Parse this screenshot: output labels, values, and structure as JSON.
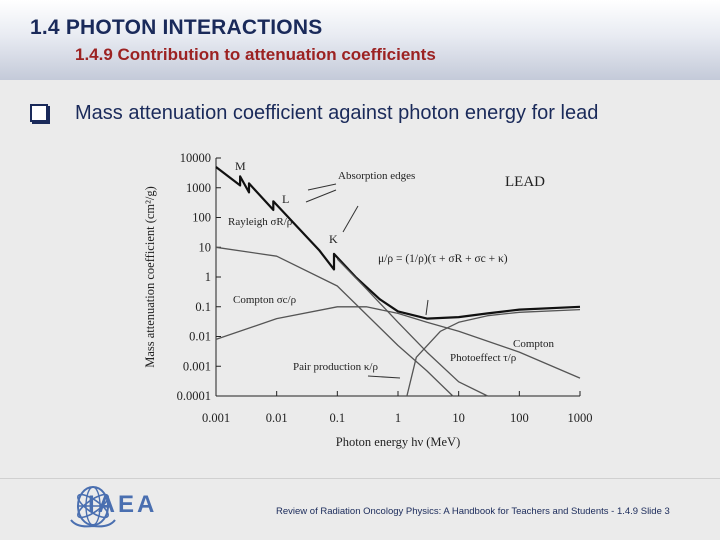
{
  "header": {
    "title": "1.4  PHOTON INTERACTIONS",
    "subtitle": "1.4.9 Contribution to attenuation coefficients"
  },
  "bullet": {
    "text": "Mass attenuation coefficient against photon energy for lead"
  },
  "figure": {
    "chart_data": {
      "type": "line",
      "title": "LEAD",
      "xlabel": "Photon energy hν (MeV)",
      "ylabel": "Mass attenuation coefficient (cm²/g)",
      "x_scale": "log",
      "y_scale": "log",
      "xlim": [
        0.001,
        1000
      ],
      "ylim": [
        0.0001,
        10000
      ],
      "x_ticks": [
        "0.001",
        "0.01",
        "0.1",
        "1",
        "10",
        "100",
        "1000"
      ],
      "y_ticks": [
        "10000",
        "1000",
        "100",
        "10",
        "1",
        "0.1",
        "0.01",
        "0.001",
        "0.0001"
      ],
      "series": [
        {
          "name": "total",
          "x": [
            0.001,
            0.0025,
            0.0025,
            0.0035,
            0.0035,
            0.0088,
            0.0088,
            0.05,
            0.088,
            0.088,
            0.2,
            0.5,
            1,
            3,
            10,
            30,
            100,
            1000
          ],
          "y": [
            5000,
            1200,
            2400,
            700,
            1400,
            180,
            350,
            8,
            1.8,
            6,
            1,
            0.18,
            0.07,
            0.04,
            0.045,
            0.06,
            0.08,
            0.1
          ]
        },
        {
          "name": "photoeffect",
          "x": [
            0.1,
            0.3,
            1,
            3,
            10,
            30
          ],
          "y": [
            4,
            0.4,
            0.03,
            0.003,
            0.0003,
            0.0001
          ]
        },
        {
          "name": "rayleigh",
          "x": [
            0.001,
            0.01,
            0.1,
            1,
            3,
            8
          ],
          "y": [
            10,
            5,
            0.5,
            0.005,
            0.0007,
            0.0001
          ]
        },
        {
          "name": "compton",
          "x": [
            0.001,
            0.01,
            0.1,
            0.3,
            1,
            3,
            10,
            100,
            1000
          ],
          "y": [
            0.008,
            0.04,
            0.1,
            0.1,
            0.06,
            0.03,
            0.015,
            0.003,
            0.0004
          ]
        },
        {
          "name": "pair",
          "x": [
            1.4,
            2,
            5,
            10,
            30,
            100,
            1000
          ],
          "y": [
            0.0001,
            0.002,
            0.015,
            0.03,
            0.05,
            0.065,
            0.08
          ]
        }
      ],
      "annotations": [
        {
          "text": "M"
        },
        {
          "text": "L"
        },
        {
          "text": "K"
        },
        {
          "text": "Absorption edges"
        },
        {
          "text": "Rayleigh σR/ρ"
        },
        {
          "text": "Compton σc/ρ"
        },
        {
          "text": "Pair production κ/ρ"
        },
        {
          "text": "Photoeffect τ/ρ"
        },
        {
          "text": "Compton"
        },
        {
          "text": "μ/ρ = (1/ρ)(τ + σR + σc + κ)"
        }
      ]
    }
  },
  "footer": {
    "logo_text": "IAEA",
    "citation": "Review of Radiation Oncology Physics: A Handbook for Teachers and Students - 1.4.9 Slide 3"
  },
  "colors": {
    "title": "#1a2a5a",
    "subtitle": "#9c2222",
    "logo": "#4a6fb0",
    "curve_total": "#111111",
    "curve_partial": "#555555"
  }
}
